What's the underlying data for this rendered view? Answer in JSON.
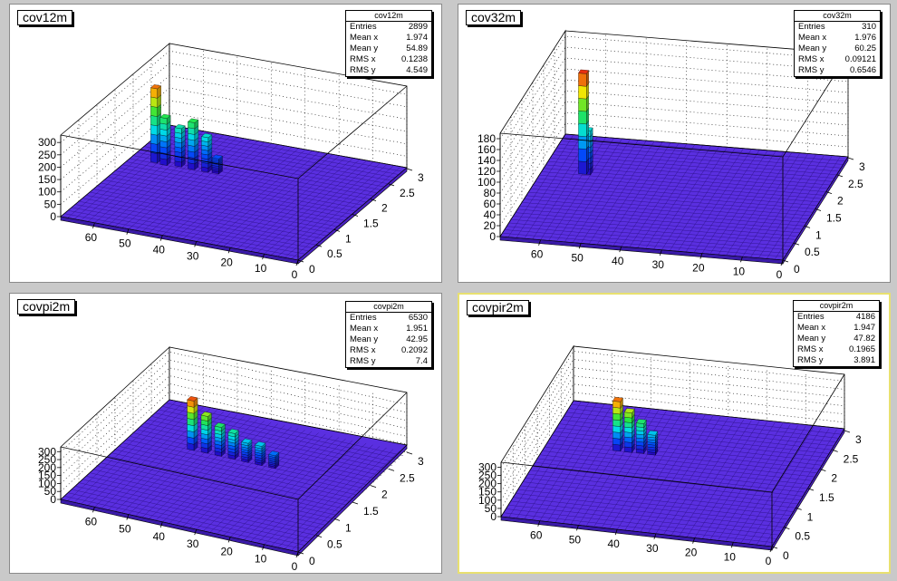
{
  "chart_data": [
    {
      "type": "lego3d",
      "title": "cov12m",
      "stats": {
        "name": "cov12m",
        "entries": "2899",
        "mean_x": "1.974",
        "mean_y": "54.89",
        "rms_x": "0.1238",
        "rms_y": "4.549"
      },
      "x_ticks": [
        "0",
        "0.5",
        "1",
        "1.5",
        "2",
        "2.5",
        "3"
      ],
      "y_ticks": [
        "0",
        "10",
        "20",
        "30",
        "40",
        "50",
        "60"
      ],
      "z_ticks": [
        "0",
        "50",
        "100",
        "150",
        "200",
        "250",
        "300"
      ],
      "xlim": [
        0,
        3
      ],
      "ylim": [
        0,
        70
      ],
      "zlim": [
        0,
        330
      ],
      "peaks": [
        {
          "x": 1.97,
          "y": 63,
          "z": 300
        },
        {
          "x": 1.95,
          "y": 60,
          "z": 190
        },
        {
          "x": 1.98,
          "y": 56,
          "z": 155
        },
        {
          "x": 1.97,
          "y": 52,
          "z": 190
        },
        {
          "x": 1.97,
          "y": 48,
          "z": 140
        },
        {
          "x": 1.98,
          "y": 45,
          "z": 60
        }
      ]
    },
    {
      "type": "lego3d",
      "title": "cov32m",
      "stats": {
        "name": "cov32m",
        "entries": "310",
        "mean_x": "1.976",
        "mean_y": "60.25",
        "rms_x": "0.09121",
        "rms_y": "0.6546"
      },
      "x_ticks": [
        "0",
        "0.5",
        "1",
        "1.5",
        "2",
        "2.5",
        "3"
      ],
      "y_ticks": [
        "0",
        "10",
        "20",
        "30",
        "40",
        "50",
        "60"
      ],
      "z_ticks": [
        "0",
        "20",
        "40",
        "60",
        "80",
        "100",
        "120",
        "140",
        "160",
        "180"
      ],
      "xlim": [
        0,
        3
      ],
      "ylim": [
        0,
        70
      ],
      "zlim": [
        0,
        190
      ],
      "peaks": [
        {
          "x": 1.98,
          "y": 60,
          "z": 185
        },
        {
          "x": 1.98,
          "y": 59,
          "z": 80
        }
      ]
    },
    {
      "type": "lego3d",
      "title": "covpi2m",
      "stats": {
        "name": "covpi2m",
        "entries": "6530",
        "mean_x": "1.951",
        "mean_y": "42.95",
        "rms_x": "0.2092",
        "rms_y": "7.4"
      },
      "x_ticks": [
        "0",
        "0.5",
        "1",
        "1.5",
        "2",
        "2.5",
        "3"
      ],
      "y_ticks": [
        "0",
        "10",
        "20",
        "30",
        "40",
        "50",
        "60"
      ],
      "z_ticks": [
        "0",
        "50",
        "100",
        "150",
        "200",
        "250",
        "300"
      ],
      "xlim": [
        0,
        3
      ],
      "ylim": [
        0,
        70
      ],
      "zlim": [
        0,
        330
      ],
      "peaks": [
        {
          "x": 1.95,
          "y": 52,
          "z": 310
        },
        {
          "x": 1.96,
          "y": 48,
          "z": 230
        },
        {
          "x": 1.96,
          "y": 44,
          "z": 180
        },
        {
          "x": 1.96,
          "y": 40,
          "z": 160
        },
        {
          "x": 1.95,
          "y": 36,
          "z": 120
        },
        {
          "x": 1.95,
          "y": 32,
          "z": 120
        },
        {
          "x": 1.95,
          "y": 28,
          "z": 80
        }
      ]
    },
    {
      "type": "lego3d",
      "title": "covpir2m",
      "stats": {
        "name": "covpir2m",
        "entries": "4186",
        "mean_x": "1.947",
        "mean_y": "47.82",
        "rms_x": "0.1965",
        "rms_y": "3.891"
      },
      "x_ticks": [
        "0",
        "0.5",
        "1",
        "1.5",
        "2",
        "2.5",
        "3"
      ],
      "y_ticks": [
        "0",
        "10",
        "20",
        "30",
        "40",
        "50",
        "60"
      ],
      "z_ticks": [
        "0",
        "50",
        "100",
        "150",
        "200",
        "250",
        "300"
      ],
      "xlim": [
        0,
        3
      ],
      "ylim": [
        0,
        70
      ],
      "zlim": [
        0,
        330
      ],
      "peaks": [
        {
          "x": 1.95,
          "y": 52,
          "z": 300
        },
        {
          "x": 1.95,
          "y": 49,
          "z": 240
        },
        {
          "x": 1.96,
          "y": 46,
          "z": 180
        },
        {
          "x": 1.95,
          "y": 43,
          "z": 120
        }
      ]
    }
  ]
}
